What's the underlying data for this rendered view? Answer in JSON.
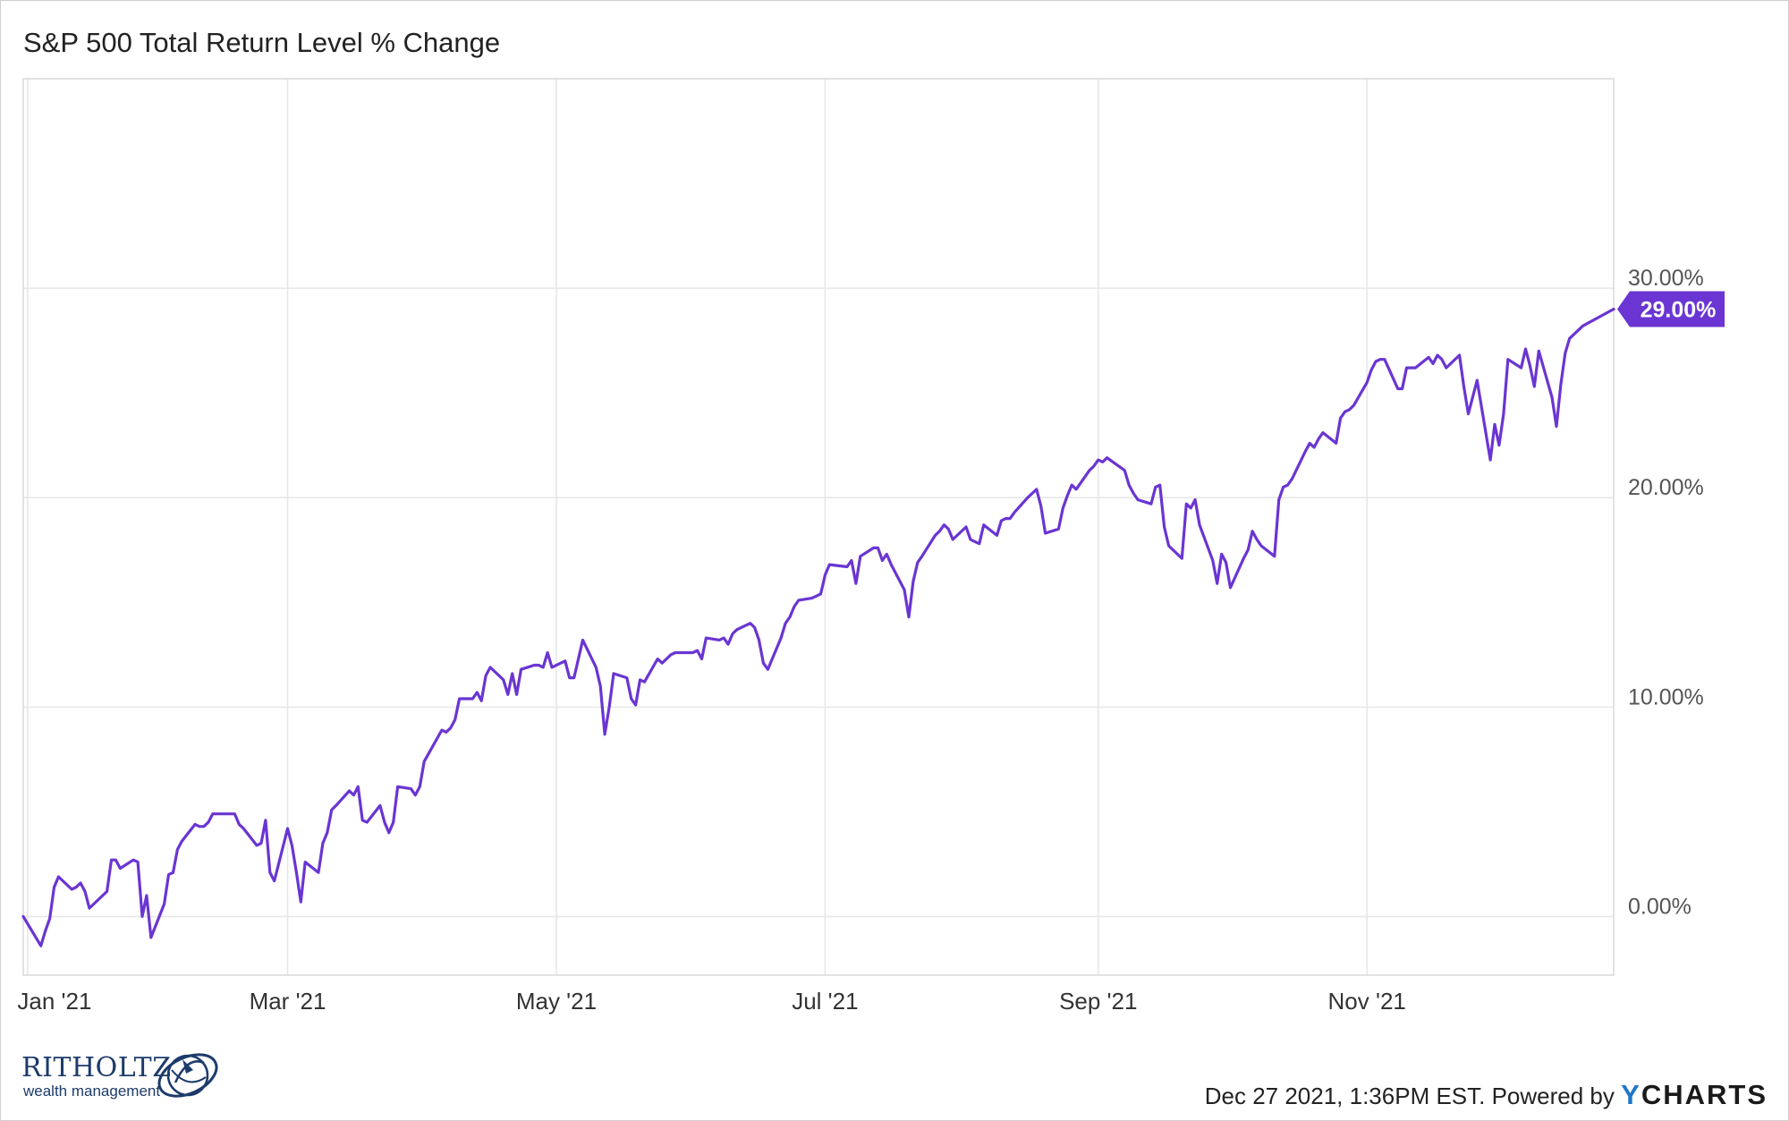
{
  "title": "S&P 500 Total Return Level % Change",
  "footer": {
    "timestamp": "Dec 27 2021, 1:36PM EST.",
    "powered_by": "Powered by",
    "brand_y": "Y",
    "brand_rest": "CHARTS"
  },
  "logo": {
    "name": "RITHOLTZ",
    "subtitle": "wealth management"
  },
  "colors": {
    "line": "#6a35d2",
    "badge": "#6a35d2",
    "grid": "#e6e6e6"
  },
  "chart_data": {
    "type": "line",
    "title": "S&P 500 Total Return Level % Change",
    "xlabel": "",
    "ylabel": "",
    "ylim": [
      -2.8,
      40.0
    ],
    "xlim": [
      "2020-12-31",
      "2021-12-27"
    ],
    "grid": true,
    "y_ticks": [
      0,
      10,
      20,
      30
    ],
    "y_tick_labels": [
      "0.00%",
      "10.00%",
      "20.00%",
      "30.00%"
    ],
    "x_ticks": [
      "2021-01-01",
      "2021-03-01",
      "2021-05-01",
      "2021-07-01",
      "2021-09-01",
      "2021-11-01"
    ],
    "x_tick_labels": [
      "Jan '21",
      "Mar '21",
      "May '21",
      "Jul '21",
      "Sep '21",
      "Nov '21"
    ],
    "last_value_label": "29.00%",
    "series": [
      {
        "values": [
          [
            "2020-12-31",
            0.0
          ],
          [
            "2021-01-04",
            -1.4
          ],
          [
            "2021-01-05",
            -0.7
          ],
          [
            "2021-01-06",
            -0.1
          ],
          [
            "2021-01-07",
            1.4
          ],
          [
            "2021-01-08",
            1.9
          ],
          [
            "2021-01-11",
            1.3
          ],
          [
            "2021-01-12",
            1.4
          ],
          [
            "2021-01-13",
            1.6
          ],
          [
            "2021-01-14",
            1.2
          ],
          [
            "2021-01-15",
            0.4
          ],
          [
            "2021-01-19",
            1.2
          ],
          [
            "2021-01-20",
            2.7
          ],
          [
            "2021-01-21",
            2.7
          ],
          [
            "2021-01-22",
            2.3
          ],
          [
            "2021-01-25",
            2.7
          ],
          [
            "2021-01-26",
            2.6
          ],
          [
            "2021-01-27",
            0.0
          ],
          [
            "2021-01-28",
            1.0
          ],
          [
            "2021-01-29",
            -1.0
          ],
          [
            "2021-02-01",
            0.6
          ],
          [
            "2021-02-02",
            2.0
          ],
          [
            "2021-02-03",
            2.1
          ],
          [
            "2021-02-04",
            3.2
          ],
          [
            "2021-02-05",
            3.6
          ],
          [
            "2021-02-08",
            4.4
          ],
          [
            "2021-02-09",
            4.3
          ],
          [
            "2021-02-10",
            4.3
          ],
          [
            "2021-02-11",
            4.5
          ],
          [
            "2021-02-12",
            4.9
          ],
          [
            "2021-02-16",
            4.9
          ],
          [
            "2021-02-17",
            4.9
          ],
          [
            "2021-02-18",
            4.4
          ],
          [
            "2021-02-19",
            4.2
          ],
          [
            "2021-02-22",
            3.4
          ],
          [
            "2021-02-23",
            3.5
          ],
          [
            "2021-02-24",
            4.6
          ],
          [
            "2021-02-25",
            2.1
          ],
          [
            "2021-02-26",
            1.7
          ],
          [
            "2021-03-01",
            4.2
          ],
          [
            "2021-03-02",
            3.4
          ],
          [
            "2021-03-03",
            2.1
          ],
          [
            "2021-03-04",
            0.7
          ],
          [
            "2021-03-05",
            2.6
          ],
          [
            "2021-03-08",
            2.1
          ],
          [
            "2021-03-09",
            3.5
          ],
          [
            "2021-03-10",
            4.0
          ],
          [
            "2021-03-11",
            5.1
          ],
          [
            "2021-03-12",
            5.3
          ],
          [
            "2021-03-15",
            6.0
          ],
          [
            "2021-03-16",
            5.8
          ],
          [
            "2021-03-17",
            6.2
          ],
          [
            "2021-03-18",
            4.6
          ],
          [
            "2021-03-19",
            4.5
          ],
          [
            "2021-03-22",
            5.3
          ],
          [
            "2021-03-23",
            4.5
          ],
          [
            "2021-03-24",
            4.0
          ],
          [
            "2021-03-25",
            4.5
          ],
          [
            "2021-03-26",
            6.2
          ],
          [
            "2021-03-29",
            6.1
          ],
          [
            "2021-03-30",
            5.8
          ],
          [
            "2021-03-31",
            6.2
          ],
          [
            "2021-04-01",
            7.4
          ],
          [
            "2021-04-05",
            8.9
          ],
          [
            "2021-04-06",
            8.8
          ],
          [
            "2021-04-07",
            9.0
          ],
          [
            "2021-04-08",
            9.4
          ],
          [
            "2021-04-09",
            10.4
          ],
          [
            "2021-04-12",
            10.4
          ],
          [
            "2021-04-13",
            10.7
          ],
          [
            "2021-04-14",
            10.3
          ],
          [
            "2021-04-15",
            11.5
          ],
          [
            "2021-04-16",
            11.9
          ],
          [
            "2021-04-19",
            11.3
          ],
          [
            "2021-04-20",
            10.6
          ],
          [
            "2021-04-21",
            11.6
          ],
          [
            "2021-04-22",
            10.6
          ],
          [
            "2021-04-23",
            11.8
          ],
          [
            "2021-04-26",
            12.0
          ],
          [
            "2021-04-27",
            12.0
          ],
          [
            "2021-04-28",
            11.9
          ],
          [
            "2021-04-29",
            12.6
          ],
          [
            "2021-04-30",
            11.9
          ],
          [
            "2021-05-03",
            12.2
          ],
          [
            "2021-05-04",
            11.4
          ],
          [
            "2021-05-05",
            11.4
          ],
          [
            "2021-05-06",
            12.3
          ],
          [
            "2021-05-07",
            13.2
          ],
          [
            "2021-05-10",
            11.9
          ],
          [
            "2021-05-11",
            11.0
          ],
          [
            "2021-05-12",
            8.7
          ],
          [
            "2021-05-13",
            10.0
          ],
          [
            "2021-05-14",
            11.6
          ],
          [
            "2021-05-17",
            11.4
          ],
          [
            "2021-05-18",
            10.4
          ],
          [
            "2021-05-19",
            10.1
          ],
          [
            "2021-05-20",
            11.3
          ],
          [
            "2021-05-21",
            11.2
          ],
          [
            "2021-05-24",
            12.3
          ],
          [
            "2021-05-25",
            12.1
          ],
          [
            "2021-05-26",
            12.3
          ],
          [
            "2021-05-27",
            12.5
          ],
          [
            "2021-05-28",
            12.6
          ],
          [
            "2021-06-01",
            12.6
          ],
          [
            "2021-06-02",
            12.7
          ],
          [
            "2021-06-03",
            12.3
          ],
          [
            "2021-06-04",
            13.3
          ],
          [
            "2021-06-07",
            13.2
          ],
          [
            "2021-06-08",
            13.3
          ],
          [
            "2021-06-09",
            13.0
          ],
          [
            "2021-06-10",
            13.5
          ],
          [
            "2021-06-11",
            13.7
          ],
          [
            "2021-06-14",
            14.0
          ],
          [
            "2021-06-15",
            13.8
          ],
          [
            "2021-06-16",
            13.2
          ],
          [
            "2021-06-17",
            12.1
          ],
          [
            "2021-06-18",
            11.8
          ],
          [
            "2021-06-21",
            13.3
          ],
          [
            "2021-06-22",
            14.0
          ],
          [
            "2021-06-23",
            14.3
          ],
          [
            "2021-06-24",
            14.8
          ],
          [
            "2021-06-25",
            15.1
          ],
          [
            "2021-06-28",
            15.2
          ],
          [
            "2021-06-29",
            15.3
          ],
          [
            "2021-06-30",
            15.4
          ],
          [
            "2021-07-01",
            16.3
          ],
          [
            "2021-07-02",
            16.8
          ],
          [
            "2021-07-06",
            16.7
          ],
          [
            "2021-07-07",
            17.0
          ],
          [
            "2021-07-08",
            15.9
          ],
          [
            "2021-07-09",
            17.2
          ],
          [
            "2021-07-12",
            17.6
          ],
          [
            "2021-07-13",
            17.6
          ],
          [
            "2021-07-14",
            17.0
          ],
          [
            "2021-07-15",
            17.3
          ],
          [
            "2021-07-16",
            16.8
          ],
          [
            "2021-07-19",
            15.6
          ],
          [
            "2021-07-20",
            14.3
          ],
          [
            "2021-07-21",
            16.0
          ],
          [
            "2021-07-22",
            16.9
          ],
          [
            "2021-07-23",
            17.2
          ],
          [
            "2021-07-26",
            18.2
          ],
          [
            "2021-07-27",
            18.4
          ],
          [
            "2021-07-28",
            18.7
          ],
          [
            "2021-07-29",
            18.5
          ],
          [
            "2021-07-30",
            18.0
          ],
          [
            "2021-08-02",
            18.6
          ],
          [
            "2021-08-03",
            18.0
          ],
          [
            "2021-08-04",
            17.9
          ],
          [
            "2021-08-05",
            17.8
          ],
          [
            "2021-08-06",
            18.7
          ],
          [
            "2021-08-09",
            18.2
          ],
          [
            "2021-08-10",
            18.9
          ],
          [
            "2021-08-11",
            19.0
          ],
          [
            "2021-08-12",
            19.0
          ],
          [
            "2021-08-13",
            19.3
          ],
          [
            "2021-08-16",
            20.0
          ],
          [
            "2021-08-17",
            20.2
          ],
          [
            "2021-08-18",
            20.4
          ],
          [
            "2021-08-19",
            19.6
          ],
          [
            "2021-08-20",
            18.3
          ],
          [
            "2021-08-23",
            18.5
          ],
          [
            "2021-08-24",
            19.5
          ],
          [
            "2021-08-25",
            20.1
          ],
          [
            "2021-08-26",
            20.6
          ],
          [
            "2021-08-27",
            20.4
          ],
          [
            "2021-08-30",
            21.3
          ],
          [
            "2021-08-31",
            21.5
          ],
          [
            "2021-09-01",
            21.8
          ],
          [
            "2021-09-02",
            21.7
          ],
          [
            "2021-09-03",
            21.9
          ],
          [
            "2021-09-07",
            21.3
          ],
          [
            "2021-09-08",
            20.6
          ],
          [
            "2021-09-09",
            20.2
          ],
          [
            "2021-09-10",
            19.9
          ],
          [
            "2021-09-13",
            19.7
          ],
          [
            "2021-09-14",
            20.5
          ],
          [
            "2021-09-15",
            20.6
          ],
          [
            "2021-09-16",
            18.6
          ],
          [
            "2021-09-17",
            17.7
          ],
          [
            "2021-09-20",
            17.1
          ],
          [
            "2021-09-21",
            19.7
          ],
          [
            "2021-09-22",
            19.5
          ],
          [
            "2021-09-23",
            19.9
          ],
          [
            "2021-09-24",
            18.7
          ],
          [
            "2021-09-27",
            17.0
          ],
          [
            "2021-09-28",
            15.9
          ],
          [
            "2021-09-29",
            17.3
          ],
          [
            "2021-09-30",
            16.9
          ],
          [
            "2021-10-01",
            15.7
          ],
          [
            "2021-10-04",
            17.1
          ],
          [
            "2021-10-05",
            17.5
          ],
          [
            "2021-10-06",
            18.4
          ],
          [
            "2021-10-07",
            18.0
          ],
          [
            "2021-10-08",
            17.7
          ],
          [
            "2021-10-11",
            17.2
          ],
          [
            "2021-10-12",
            19.9
          ],
          [
            "2021-10-13",
            20.5
          ],
          [
            "2021-10-14",
            20.6
          ],
          [
            "2021-10-15",
            20.9
          ],
          [
            "2021-10-18",
            22.2
          ],
          [
            "2021-10-19",
            22.6
          ],
          [
            "2021-10-20",
            22.4
          ],
          [
            "2021-10-21",
            22.8
          ],
          [
            "2021-10-22",
            23.1
          ],
          [
            "2021-10-25",
            22.6
          ],
          [
            "2021-10-26",
            23.8
          ],
          [
            "2021-10-27",
            24.1
          ],
          [
            "2021-10-28",
            24.2
          ],
          [
            "2021-10-29",
            24.4
          ],
          [
            "2021-11-01",
            25.5
          ],
          [
            "2021-11-02",
            26.1
          ],
          [
            "2021-11-03",
            26.5
          ],
          [
            "2021-11-04",
            26.6
          ],
          [
            "2021-11-05",
            26.6
          ],
          [
            "2021-11-08",
            25.2
          ],
          [
            "2021-11-09",
            25.2
          ],
          [
            "2021-11-10",
            26.2
          ],
          [
            "2021-11-11",
            26.2
          ],
          [
            "2021-11-12",
            26.2
          ],
          [
            "2021-11-15",
            26.7
          ],
          [
            "2021-11-16",
            26.4
          ],
          [
            "2021-11-17",
            26.8
          ],
          [
            "2021-11-18",
            26.6
          ],
          [
            "2021-11-19",
            26.2
          ],
          [
            "2021-11-22",
            26.8
          ],
          [
            "2021-11-23",
            25.3
          ],
          [
            "2021-11-24",
            24.0
          ],
          [
            "2021-11-26",
            25.6
          ],
          [
            "2021-11-29",
            21.8
          ],
          [
            "2021-11-30",
            23.5
          ],
          [
            "2021-12-01",
            22.5
          ],
          [
            "2021-12-02",
            24.0
          ],
          [
            "2021-12-03",
            26.6
          ],
          [
            "2021-12-06",
            26.2
          ],
          [
            "2021-12-07",
            27.1
          ],
          [
            "2021-12-08",
            26.3
          ],
          [
            "2021-12-09",
            25.3
          ],
          [
            "2021-12-10",
            27.0
          ],
          [
            "2021-12-13",
            24.8
          ],
          [
            "2021-12-14",
            23.4
          ],
          [
            "2021-12-15",
            25.4
          ],
          [
            "2021-12-16",
            26.9
          ],
          [
            "2021-12-17",
            27.6
          ],
          [
            "2021-12-20",
            28.2
          ],
          [
            "2021-12-27",
            29.0
          ]
        ]
      }
    ]
  }
}
